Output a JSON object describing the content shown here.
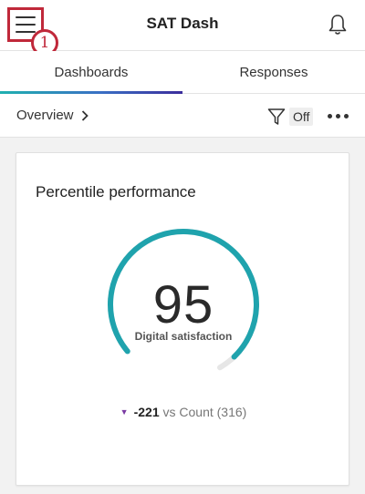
{
  "header": {
    "title": "SAT Dash",
    "menu_icon": "hamburger-menu-icon",
    "badge_number": "1",
    "bell_icon": "bell-icon"
  },
  "tabs": [
    {
      "label": "Dashboards",
      "active": true
    },
    {
      "label": "Responses",
      "active": false
    }
  ],
  "toolbar": {
    "breadcrumb": "Overview",
    "filter_label": "Off",
    "filter_icon": "filter-icon",
    "more_icon": "more-horizontal-icon"
  },
  "widget": {
    "title": "Percentile performance",
    "value": "95",
    "metric_label": "Digital satisfaction",
    "comparison_delta": "-221",
    "comparison_text": "vs Count (316)",
    "gauge_fraction": 0.95
  },
  "colors": {
    "accent_teal": "#1fa3ad",
    "highlight_red": "#c0283a",
    "down_arrow": "#7a3aa3",
    "gauge_track": "#e6e6e6"
  }
}
